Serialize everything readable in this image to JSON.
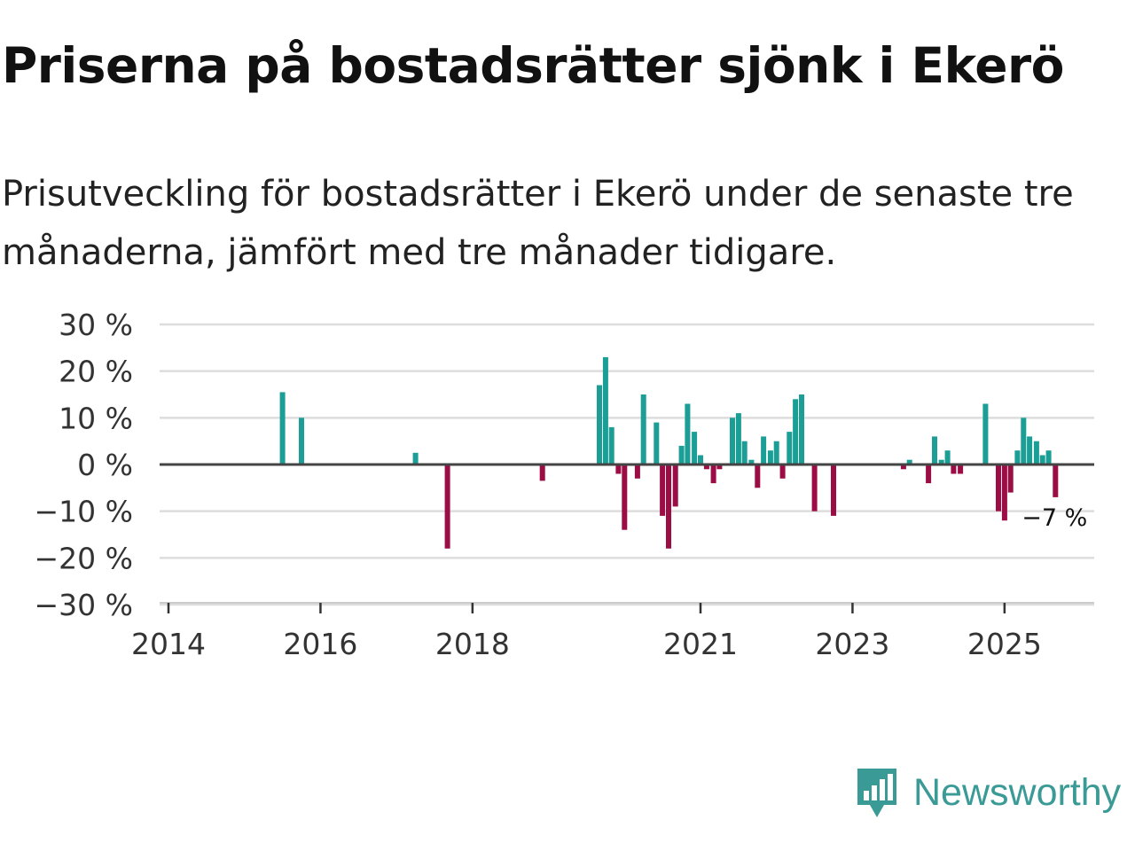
{
  "title": "Priserna på bostadsrätter sjönk i Ekerö",
  "subtitle": "Prisutveckling för bostadsrätter i Ekerö under de senaste tre månaderna, jämfört med tre månader tidigare.",
  "brand": {
    "name": "Newsworthy",
    "color": "#3a9a95"
  },
  "colors": {
    "positive": "#1a9e96",
    "negative": "#9c0c45",
    "zero_line": "#444444",
    "grid": "#dddddd"
  },
  "chart_data": {
    "type": "bar",
    "ylim": [
      -30,
      30
    ],
    "yticks": [
      30,
      20,
      10,
      0,
      -10,
      -20,
      -30
    ],
    "ytick_labels": [
      "30 %",
      "20 %",
      "10 %",
      "0 %",
      "−10 %",
      "−20 %",
      "−30 %"
    ],
    "xlim": [
      2014,
      2026.25
    ],
    "xticks": [
      2014,
      2016,
      2018,
      2021,
      2023,
      2025
    ],
    "xtick_labels": [
      "2014",
      "2016",
      "2018",
      "2021",
      "2023",
      "2025"
    ],
    "unit": "%",
    "x": [
      2015.5,
      2015.75,
      2017.25,
      2017.67,
      2018.92,
      2019.67,
      2019.75,
      2019.83,
      2019.92,
      2020.0,
      2020.17,
      2020.25,
      2020.42,
      2020.5,
      2020.58,
      2020.67,
      2020.75,
      2020.83,
      2020.92,
      2021.0,
      2021.08,
      2021.17,
      2021.25,
      2021.42,
      2021.5,
      2021.58,
      2021.67,
      2021.75,
      2021.83,
      2021.92,
      2022.0,
      2022.08,
      2022.17,
      2022.25,
      2022.33,
      2022.5,
      2022.75,
      2023.67,
      2023.75,
      2024.0,
      2024.08,
      2024.17,
      2024.25,
      2024.33,
      2024.42,
      2024.75,
      2024.92,
      2025.0,
      2025.08,
      2025.17,
      2025.25,
      2025.33,
      2025.42,
      2025.5,
      2025.58,
      2025.67
    ],
    "values": [
      15.5,
      10,
      2.5,
      -18,
      -3.5,
      17,
      23,
      8,
      -2,
      -14,
      -3,
      15,
      9,
      -11,
      -18,
      -9,
      4,
      13,
      7,
      2,
      -1,
      -4,
      -1,
      10,
      11,
      5,
      1,
      -5,
      6,
      3,
      5,
      -3,
      7,
      14,
      15,
      -10,
      -11,
      -1,
      1,
      -4,
      6,
      1,
      3,
      -2,
      -2,
      13,
      -10,
      -12,
      -6,
      3,
      10,
      6,
      5,
      2,
      3,
      -7
    ],
    "annotation": {
      "text": "−7 %",
      "x": 2025.67,
      "value": -7
    }
  }
}
